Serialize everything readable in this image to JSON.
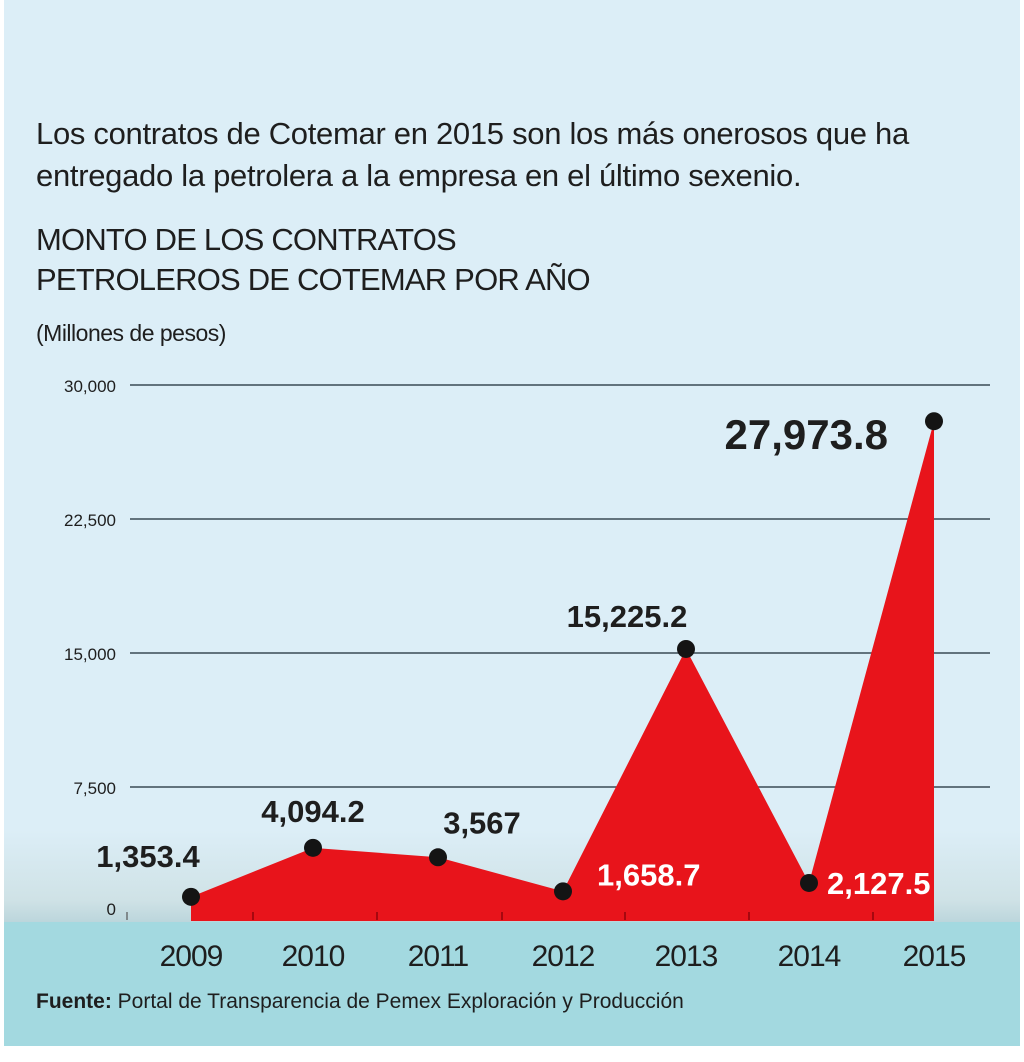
{
  "lead_text": [
    "Los contratos de Cotemar en 2015 son los más onerosos que ha",
    "entregado la petrolera a la empresa en el último sexenio."
  ],
  "chart_data": {
    "type": "area",
    "title": [
      "MONTO DE LOS CONTRATOS",
      "PETROLEROS DE COTEMAR POR AÑO"
    ],
    "ylabel": "(Millones de pesos)",
    "xlabel": "",
    "categories": [
      "2009",
      "2010",
      "2011",
      "2012",
      "2013",
      "2014",
      "2015"
    ],
    "values": [
      1353.4,
      4094.2,
      3567,
      1658.7,
      15225.2,
      2127.5,
      27973.8
    ],
    "data_labels": [
      "1,353.4",
      "4,094.2",
      "3,567",
      "1,658.7",
      "15,225.2",
      "2,127.5",
      "27,973.8"
    ],
    "ylim": [
      0,
      30000
    ],
    "yticks": [
      0,
      7500,
      15000,
      22500,
      30000
    ],
    "ytick_labels": [
      "0",
      "7,500",
      "15,000",
      "22,500",
      "30,000"
    ],
    "grid": true,
    "legend": "none",
    "colors": {
      "area": "#e8141b",
      "marker": "#141414",
      "grid": "#3a4a55",
      "label_dark": "#1e1e1e",
      "label_light": "#ffffff"
    }
  },
  "source": {
    "label": "Fuente:",
    "text": " Portal de Transparencia de Pemex Exploración y Producción"
  }
}
